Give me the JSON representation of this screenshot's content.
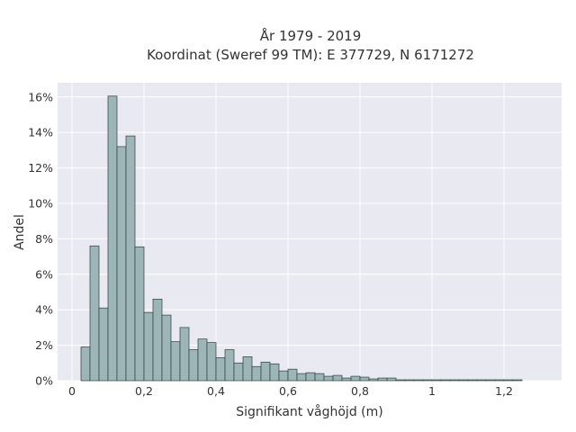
{
  "chart_data": {
    "type": "bar",
    "title": "År 1979 - 2019",
    "subtitle": "Koordinat (Sweref 99 TM): E 377729, N 6171272",
    "xlabel": "Signifikant våghöjd (m)",
    "ylabel": "Andel",
    "xlim": [
      -0.04,
      1.36
    ],
    "ylim": [
      0,
      16.8
    ],
    "x_ticks": [
      0,
      0.2,
      0.4,
      0.6,
      0.8,
      1,
      1.2
    ],
    "x_tick_labels": [
      "0",
      "0,2",
      "0,4",
      "0,6",
      "0,8",
      "1",
      "1,2"
    ],
    "y_ticks": [
      0,
      2,
      4,
      6,
      8,
      10,
      12,
      14,
      16
    ],
    "y_tick_labels": [
      "0%",
      "2%",
      "4%",
      "6%",
      "8%",
      "10%",
      "12%",
      "14%",
      "16%"
    ],
    "grid": true,
    "bin_width": 0.025,
    "bin_start": 0.025,
    "values": [
      1.9,
      7.6,
      4.1,
      16.05,
      13.2,
      13.8,
      7.55,
      3.85,
      4.6,
      3.7,
      2.2,
      3.0,
      1.75,
      2.35,
      2.15,
      1.3,
      1.75,
      1.0,
      1.35,
      0.8,
      1.05,
      0.95,
      0.55,
      0.65,
      0.4,
      0.45,
      0.4,
      0.25,
      0.3,
      0.15,
      0.25,
      0.2,
      0.1,
      0.15,
      0.15,
      0.05,
      0.05,
      0.05,
      0.05,
      0.05,
      0.05,
      0.05,
      0.05,
      0.05,
      0.05,
      0.05,
      0.05,
      0.05,
      0.05
    ],
    "colors": {
      "bar_fill": "#9db5b6",
      "bar_edge": "#2f3f3f",
      "plot_background": "#e9e9f1",
      "grid": "#ffffff"
    }
  }
}
